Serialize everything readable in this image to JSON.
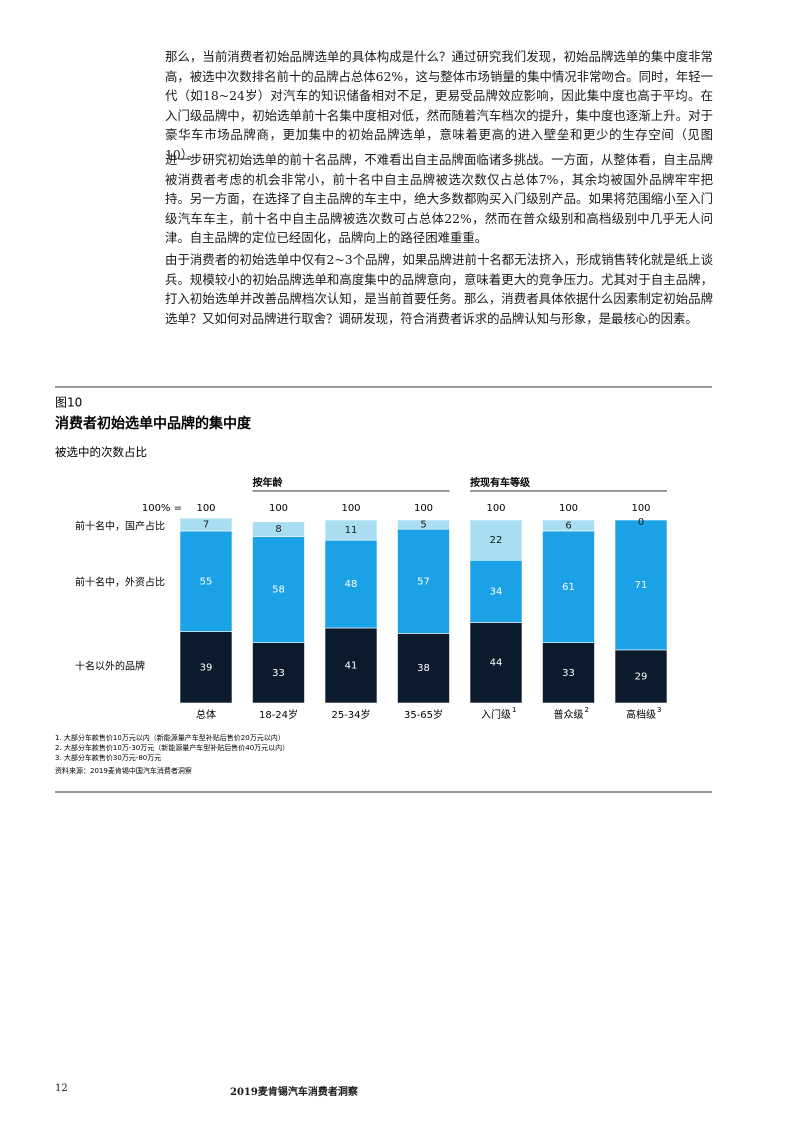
{
  "paragraphs": [
    "那么，当前消费者初始品牌选单的具体构成是什么？通过研究我们发现，初始品牌选单的集中度非常高，被选中次数排名前十的品牌占总体62%，这与整体市场销量的集中情况非常吻合。同时，年轻一代（如18~24岁）对汽车的知识储备相对不足，更易受品牌效应影响，因此集中度也高于平均。在入门级品牌中，初始选单前十名集中度相对低，然而随着汽车档次的提升，集中度也逐渐上升。对于豪华车市场品牌商，更加集中的初始品牌选单，意味着更高的进入壁垒和更少的生存空间（见图10）。",
    "进一步研究初始选单的前十名品牌，不难看出自主品牌面临诸多挑战。一方面，从整体看，自主品牌被消费者考虑的机会非常小，前十名中自主品牌被选次数仅占总体7%，其余均被国外品牌牢牢把持。另一方面，在选择了自主品牌的车主中，绝大多数都购买入门级别产品。如果将范围缩小至入门级汽车车主，前十名中自主品牌被选次数可占总体22%，然而在普众级别和高档级别中几乎无人问津。自主品牌的定位已经固化，品牌向上的路径困难重重。",
    "由于消费者的初始选单中仅有2~3个品牌，如果品牌进前十名都无法挤入，形成销售转化就是纸上谈兵。规模较小的初始品牌选单和高度集中的品牌意向，意味着更大的竞争压力。尤其对于自主品牌，打入初始选单并改善品牌档次认知，是当前首要任务。那么，消费者具体依据什么因素制定初始品牌选单？又如何对品牌进行取舍？调研发现，符合消费者诉求的品牌认知与形象，是最核心的因素。"
  ],
  "figure": {
    "label": "图10",
    "footnotes": [
      "1. 大部分车款售价10万元以内（新能源量产车型补贴后售价20万元以内）",
      "2. 大部分车款售价10万-30万元（新能源量产车型补贴后售价40万元以内）",
      "3. 大部分车款售价30万元-80万元"
    ],
    "source": "资料来源：2019麦肯锡中国汽车消费者洞察"
  },
  "chart_data": {
    "type": "stacked_bar",
    "title": "消费者初始选单中品牌的集中度",
    "subtitle": "被选中的次数占比",
    "group_labels": [
      "按年龄",
      "按现有车等级"
    ],
    "categories": [
      "总体",
      "18-24岁",
      "25-34岁",
      "35-65岁",
      "入门级",
      "普众级",
      "高档级"
    ],
    "category_notes": [
      null,
      null,
      null,
      null,
      "1",
      "2",
      "3"
    ],
    "totals_label": "100% =",
    "totals": [
      100,
      100,
      100,
      100,
      100,
      100,
      100
    ],
    "ylim": [
      0,
      100
    ],
    "series": [
      {
        "name": "十名以外的品牌",
        "color": "#0b1a2c",
        "values": [
          39,
          33,
          41,
          38,
          44,
          33,
          29
        ]
      },
      {
        "name": "前十名中，外资占比",
        "color": "#1ba1e6",
        "values": [
          55,
          58,
          48,
          57,
          34,
          61,
          71
        ]
      },
      {
        "name": "前十名中，国产占比",
        "color": "#a9def2",
        "values": [
          7,
          8,
          11,
          5,
          22,
          6,
          0
        ]
      }
    ]
  },
  "footer": {
    "page": "12",
    "title": "2019麦肯锡汽车消费者洞察"
  }
}
